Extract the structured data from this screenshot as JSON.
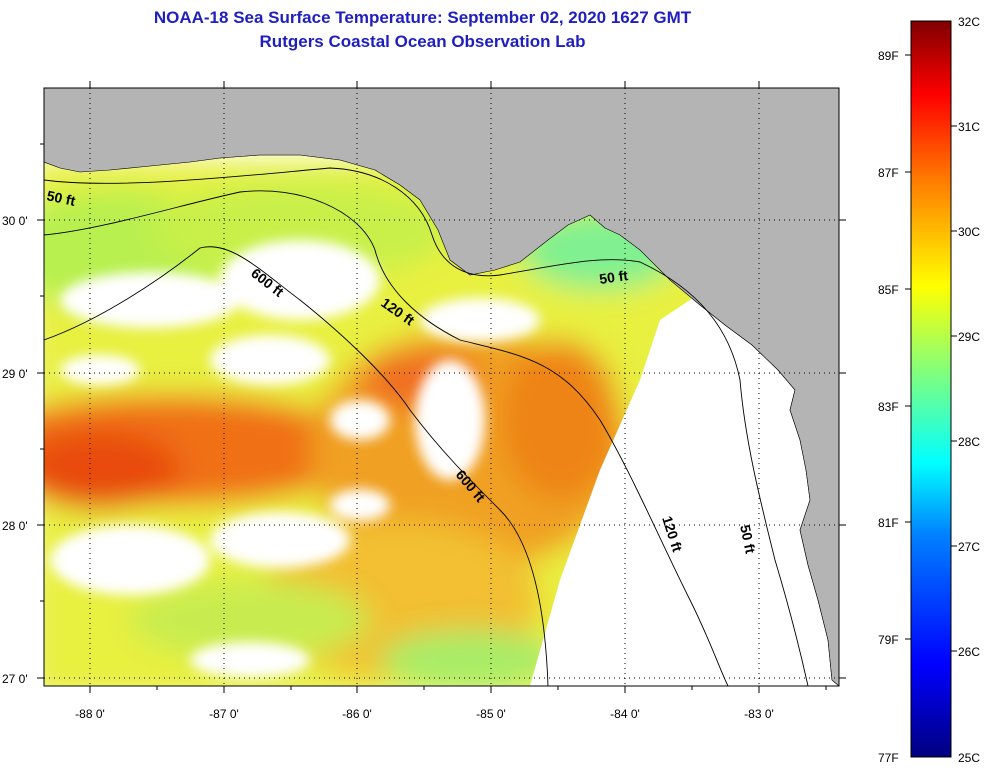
{
  "header": {
    "title": "NOAA-18 Sea Surface Temperature:  September 02, 2020 1627 GMT",
    "subtitle": "Rutgers Coastal Ocean Observation Lab"
  },
  "axes": {
    "lat_labels": [
      "30 0'",
      "29 0'",
      "28 0'",
      "27 0'"
    ],
    "lon_labels": [
      "-88 0'",
      "-87 0'",
      "-86 0'",
      "-85 0'",
      "-84 0'",
      "-83 0'"
    ],
    "lat_range": [
      26.97,
      30.88
    ],
    "lon_range": [
      -88.35,
      -82.5
    ]
  },
  "contours": [
    {
      "label": "50 ft"
    },
    {
      "label": "600 ft"
    },
    {
      "label": "120 ft"
    },
    {
      "label": "50 ft"
    },
    {
      "label": "600 ft"
    },
    {
      "label": "120 ft"
    },
    {
      "label": "50 ft"
    }
  ],
  "colorbar": {
    "celsius_labels": [
      "32C",
      "31C",
      "30C",
      "29C",
      "28C",
      "27C",
      "26C",
      "25C"
    ],
    "fahrenheit_labels": [
      "89F",
      "87F",
      "85F",
      "83F",
      "81F",
      "79F",
      "77F"
    ],
    "colors": [
      "#00007f",
      "#0000ff",
      "#007fff",
      "#00ffff",
      "#7fff7f",
      "#ffff00",
      "#ff7f00",
      "#ff0000",
      "#7f0000"
    ]
  },
  "colors": {
    "land": "#b4b4b4",
    "no_data": "#ffffff",
    "title": "#1f1fbf"
  }
}
